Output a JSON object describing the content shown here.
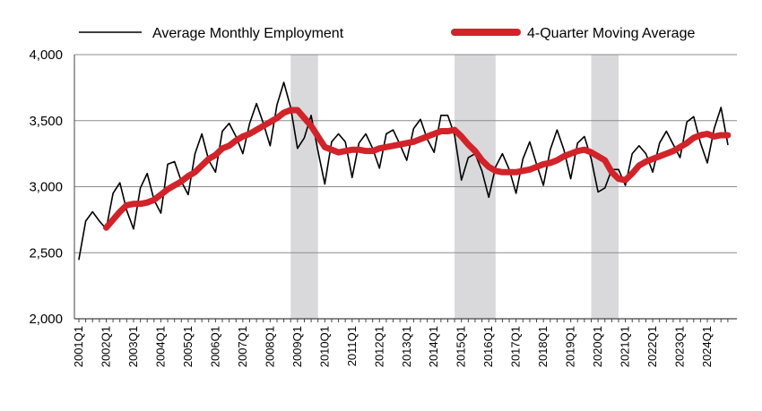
{
  "chart_data": {
    "type": "line",
    "title": "",
    "xlabel": "",
    "ylabel": "",
    "ylim": [
      2000,
      4000
    ],
    "y_ticks": [
      "2,000",
      "2,500",
      "3,000",
      "3,500",
      "4,000"
    ],
    "y_tick_values": [
      2000,
      2500,
      3000,
      3500,
      4000
    ],
    "grid": "horizontal",
    "legend_position": "top",
    "colors": {
      "series1": "#000000",
      "series2": "#d2232a",
      "recession": "#d9d9db"
    },
    "x": [
      "2001Q1",
      "2001Q2",
      "2001Q3",
      "2001Q4",
      "2002Q1",
      "2002Q2",
      "2002Q3",
      "2002Q4",
      "2003Q1",
      "2003Q2",
      "2003Q3",
      "2003Q4",
      "2004Q1",
      "2004Q2",
      "2004Q3",
      "2004Q4",
      "2005Q1",
      "2005Q2",
      "2005Q3",
      "2005Q4",
      "2006Q1",
      "2006Q2",
      "2006Q3",
      "2006Q4",
      "2007Q1",
      "2007Q2",
      "2007Q3",
      "2007Q4",
      "2008Q1",
      "2008Q2",
      "2008Q3",
      "2008Q4",
      "2009Q1",
      "2009Q2",
      "2009Q3",
      "2009Q4",
      "2010Q1",
      "2010Q2",
      "2010Q3",
      "2010Q4",
      "2011Q1",
      "2011Q2",
      "2011Q3",
      "2011Q4",
      "2012Q1",
      "2012Q2",
      "2012Q3",
      "2012Q4",
      "2013Q1",
      "2013Q2",
      "2013Q3",
      "2013Q4",
      "2014Q1",
      "2014Q2",
      "2014Q3",
      "2014Q4",
      "2015Q1",
      "2015Q2",
      "2015Q3",
      "2015Q4",
      "2016Q1",
      "2016Q2",
      "2016Q3",
      "2016Q4",
      "2017Q1",
      "2017Q2",
      "2017Q3",
      "2017Q4",
      "2018Q1",
      "2018Q2",
      "2018Q3",
      "2018Q4",
      "2019Q1",
      "2019Q2",
      "2019Q3",
      "2019Q4",
      "2020Q1",
      "2020Q2",
      "2020Q3",
      "2020Q4",
      "2021Q1",
      "2021Q2",
      "2021Q3",
      "2021Q4",
      "2022Q1",
      "2022Q2",
      "2022Q3",
      "2022Q4",
      "2023Q1",
      "2023Q2",
      "2023Q3",
      "2023Q4",
      "2024Q1",
      "2024Q2",
      "2024Q3",
      "2024Q4"
    ],
    "x_tick_labels": [
      "2001Q1",
      "2002Q1",
      "2003Q1",
      "2004Q1",
      "2005Q1",
      "2006Q1",
      "2007Q1",
      "2008Q1",
      "2009Q1",
      "2010Q1",
      "2011Q1",
      "2012Q1",
      "2013Q1",
      "2014Q1",
      "2015Q1",
      "2016Q1",
      "2017Q1",
      "2018Q1",
      "2019Q1",
      "2020Q1",
      "2021Q1",
      "2022Q1",
      "2023Q1",
      "2024Q1"
    ],
    "recession_shading": [
      {
        "start": "2008Q4",
        "end": "2009Q4"
      },
      {
        "start": "2014Q4",
        "end": "2016Q2"
      },
      {
        "start": "2019Q4",
        "end": "2020Q4"
      }
    ],
    "series": [
      {
        "name": "Average Monthly Employment",
        "values": [
          2450,
          2740,
          2810,
          2740,
          2680,
          2950,
          3030,
          2820,
          2680,
          2990,
          3100,
          2900,
          2800,
          3170,
          3190,
          3040,
          2940,
          3250,
          3400,
          3200,
          3110,
          3420,
          3480,
          3380,
          3250,
          3480,
          3630,
          3480,
          3310,
          3620,
          3790,
          3600,
          3290,
          3370,
          3540,
          3270,
          3020,
          3340,
          3400,
          3340,
          3070,
          3330,
          3400,
          3290,
          3140,
          3400,
          3430,
          3320,
          3200,
          3440,
          3510,
          3360,
          3260,
          3540,
          3540,
          3390,
          3050,
          3220,
          3250,
          3120,
          2920,
          3150,
          3250,
          3130,
          2950,
          3210,
          3340,
          3170,
          3010,
          3280,
          3430,
          3280,
          3060,
          3330,
          3380,
          3210,
          2960,
          2990,
          3130,
          3130,
          3010,
          3250,
          3310,
          3250,
          3110,
          3330,
          3420,
          3320,
          3220,
          3490,
          3530,
          3330,
          3180,
          3440,
          3600,
          3320
        ]
      },
      {
        "name": "4-Quarter Moving Average",
        "values": [
          null,
          null,
          null,
          null,
          2690,
          2750,
          2810,
          2860,
          2870,
          2870,
          2880,
          2900,
          2940,
          2980,
          3010,
          3040,
          3080,
          3110,
          3160,
          3210,
          3240,
          3290,
          3310,
          3350,
          3380,
          3400,
          3430,
          3460,
          3490,
          3520,
          3560,
          3580,
          3580,
          3520,
          3460,
          3380,
          3300,
          3280,
          3260,
          3270,
          3280,
          3280,
          3270,
          3270,
          3290,
          3300,
          3310,
          3320,
          3330,
          3340,
          3360,
          3380,
          3400,
          3420,
          3420,
          3430,
          3380,
          3320,
          3270,
          3200,
          3150,
          3120,
          3110,
          3110,
          3110,
          3120,
          3130,
          3150,
          3170,
          3180,
          3200,
          3230,
          3250,
          3270,
          3280,
          3260,
          3230,
          3200,
          3110,
          3060,
          3050,
          3100,
          3160,
          3190,
          3210,
          3230,
          3250,
          3270,
          3300,
          3330,
          3370,
          3390,
          3400,
          3380,
          3390,
          3390
        ]
      }
    ]
  }
}
